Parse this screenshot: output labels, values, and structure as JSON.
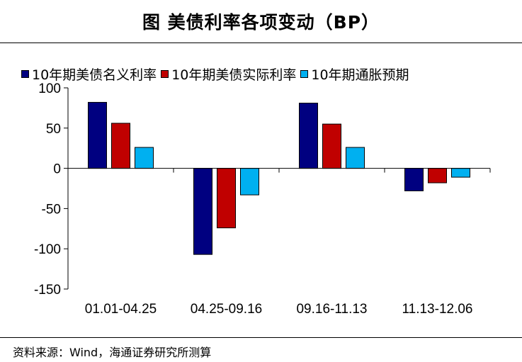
{
  "title": "图  美债利率各项变动（BP）",
  "source": "资料来源：Wind，海通证券研究所测算",
  "chart_data": {
    "type": "bar",
    "title": "图  美债利率各项变动（BP）",
    "xlabel": "",
    "ylabel": "",
    "ylim": [
      -150,
      100
    ],
    "yticks": [
      100,
      50,
      0,
      -50,
      -100,
      -150
    ],
    "ytick_labels": [
      "100",
      "50",
      "0",
      "-50",
      "-100",
      "-150"
    ],
    "grid": false,
    "legend_position": "top-left",
    "categories": [
      "01.01-04.25",
      "04.25-09.16",
      "09.16-11.13",
      "11.13-12.06"
    ],
    "series": [
      {
        "name": "10年期美债名义利率",
        "color": "#000080",
        "values": [
          82,
          -107,
          81,
          -28
        ]
      },
      {
        "name": "10年期美债实际利率",
        "color": "#C00000",
        "values": [
          56,
          -74,
          55,
          -18
        ]
      },
      {
        "name": "10年期通胀预期",
        "color": "#00B0F0",
        "values": [
          26,
          -33,
          26,
          -11
        ]
      }
    ]
  }
}
